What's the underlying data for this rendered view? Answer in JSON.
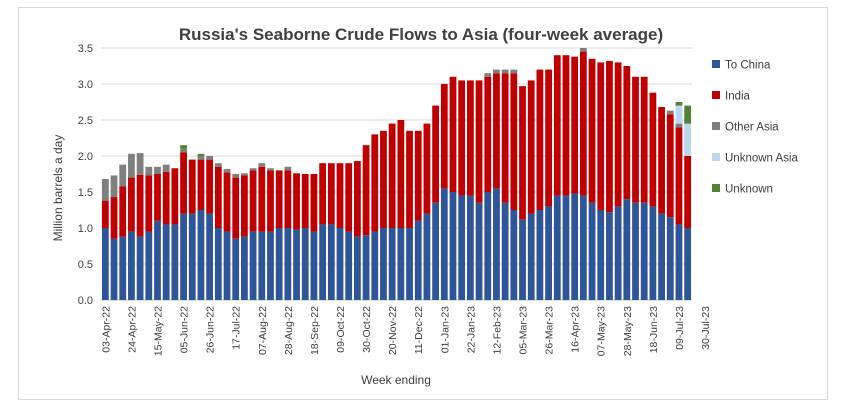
{
  "chart_data": {
    "type": "bar",
    "stacked": true,
    "title": "Russia's Seaborne Crude Flows to Asia (four-week average)",
    "xlabel": "Week ending",
    "ylabel": "Million barrels a day",
    "ylim": [
      0,
      3.5
    ],
    "yticks": [
      "0.0",
      "0.5",
      "1.0",
      "1.5",
      "2.0",
      "2.5",
      "3.0",
      "3.5"
    ],
    "grid": "horizontal",
    "legend_position": "right",
    "xtick_labels": [
      "03-Apr-22",
      "24-Apr-22",
      "15-May-22",
      "05-Jun-22",
      "26-Jun-22",
      "17-Jul-22",
      "07-Aug-22",
      "28-Aug-22",
      "18-Sep-22",
      "09-Oct-22",
      "30-Oct-22",
      "20-Nov-22",
      "11-Dec-22",
      "01-Jan-23",
      "22-Jan-23",
      "12-Feb-23",
      "05-Mar-23",
      "26-Mar-23",
      "16-Apr-23",
      "07-May-23",
      "28-May-23",
      "18-Jun-23",
      "09-Jul-23",
      "30-Jul-23"
    ],
    "series": [
      {
        "name": "To China",
        "color": "#2E5597",
        "values": [
          1.0,
          0.85,
          0.88,
          0.95,
          0.88,
          0.95,
          1.1,
          1.05,
          1.05,
          1.2,
          1.2,
          1.25,
          1.2,
          1.0,
          0.95,
          0.85,
          0.88,
          0.95,
          0.95,
          0.95,
          1.0,
          1.0,
          0.98,
          1.0,
          0.95,
          1.05,
          1.05,
          1.0,
          0.95,
          0.88,
          0.9,
          0.95,
          1.0,
          1.0,
          1.0,
          1.0,
          1.1,
          1.2,
          1.35,
          1.55,
          1.5,
          1.45,
          1.45,
          1.35,
          1.5,
          1.55,
          1.35,
          1.25,
          1.12,
          1.2,
          1.25,
          1.3,
          1.45,
          1.45,
          1.48,
          1.45,
          1.35,
          1.25,
          1.22,
          1.3,
          1.4,
          1.35,
          1.35,
          1.3,
          1.2,
          1.15,
          1.05,
          1.0
        ]
      },
      {
        "name": "India",
        "color": "#C00000",
        "values": [
          0.38,
          0.58,
          0.7,
          0.75,
          0.86,
          0.78,
          0.65,
          0.73,
          0.78,
          0.85,
          0.75,
          0.7,
          0.75,
          0.85,
          0.82,
          0.85,
          0.85,
          0.85,
          0.9,
          0.85,
          0.8,
          0.8,
          0.78,
          0.75,
          0.8,
          0.85,
          0.85,
          0.9,
          0.95,
          1.05,
          1.25,
          1.35,
          1.35,
          1.45,
          1.5,
          1.35,
          1.25,
          1.25,
          1.35,
          1.45,
          1.6,
          1.6,
          1.6,
          1.7,
          1.6,
          1.6,
          1.8,
          1.9,
          1.85,
          1.85,
          1.95,
          1.9,
          1.95,
          1.95,
          1.9,
          2.0,
          2.0,
          2.05,
          2.1,
          2.0,
          1.85,
          1.75,
          1.75,
          1.58,
          1.48,
          1.43,
          1.35,
          1.0
        ]
      },
      {
        "name": "Other Asia",
        "color": "#7F7F7F",
        "values": [
          0.3,
          0.3,
          0.3,
          0.33,
          0.3,
          0.12,
          0.1,
          0.1,
          0.0,
          0.05,
          0.0,
          0.05,
          0.05,
          0.05,
          0.05,
          0.05,
          0.03,
          0.03,
          0.05,
          0.03,
          0.0,
          0.05,
          0.0,
          0.0,
          0.0,
          0.0,
          0.0,
          0.0,
          0.0,
          0.0,
          0.0,
          0.0,
          0.0,
          0.0,
          0.0,
          0.0,
          0.0,
          0.0,
          0.0,
          0.0,
          0.0,
          0.0,
          0.0,
          0.0,
          0.05,
          0.05,
          0.05,
          0.05,
          0.0,
          0.0,
          0.0,
          0.0,
          0.0,
          0.0,
          0.0,
          0.05,
          0.0,
          0.0,
          0.0,
          0.0,
          0.0,
          0.0,
          0.0,
          0.0,
          0.0,
          0.05,
          0.05,
          0.0
        ]
      },
      {
        "name": "Unknown Asia",
        "color": "#BDD7EE",
        "values": [
          0.0,
          0.0,
          0.0,
          0.0,
          0.0,
          0.0,
          0.0,
          0.0,
          0.0,
          0.0,
          0.0,
          0.0,
          0.0,
          0.0,
          0.0,
          0.0,
          0.0,
          0.0,
          0.0,
          0.0,
          0.0,
          0.0,
          0.0,
          0.0,
          0.0,
          0.0,
          0.0,
          0.0,
          0.0,
          0.0,
          0.0,
          0.0,
          0.0,
          0.0,
          0.0,
          0.0,
          0.0,
          0.0,
          0.0,
          0.0,
          0.0,
          0.0,
          0.0,
          0.0,
          0.0,
          0.0,
          0.0,
          0.0,
          0.0,
          0.0,
          0.0,
          0.0,
          0.0,
          0.0,
          0.0,
          0.0,
          0.0,
          0.0,
          0.0,
          0.0,
          0.0,
          0.0,
          0.0,
          0.0,
          0.0,
          0.0,
          0.25,
          0.45
        ]
      },
      {
        "name": "Unknown",
        "color": "#548235",
        "values": [
          0.0,
          0.0,
          0.0,
          0.0,
          0.0,
          0.0,
          0.0,
          0.0,
          0.0,
          0.05,
          0.0,
          0.03,
          0.0,
          0.0,
          0.0,
          0.0,
          0.0,
          0.0,
          0.0,
          0.0,
          0.0,
          0.0,
          0.0,
          0.0,
          0.0,
          0.0,
          0.0,
          0.0,
          0.0,
          0.0,
          0.0,
          0.0,
          0.0,
          0.0,
          0.0,
          0.0,
          0.0,
          0.0,
          0.0,
          0.0,
          0.0,
          0.0,
          0.0,
          0.0,
          0.0,
          0.0,
          0.0,
          0.0,
          0.0,
          0.0,
          0.0,
          0.0,
          0.0,
          0.0,
          0.0,
          0.0,
          0.0,
          0.0,
          0.0,
          0.0,
          0.0,
          0.0,
          0.0,
          0.0,
          0.0,
          0.0,
          0.05,
          0.25
        ]
      }
    ]
  }
}
